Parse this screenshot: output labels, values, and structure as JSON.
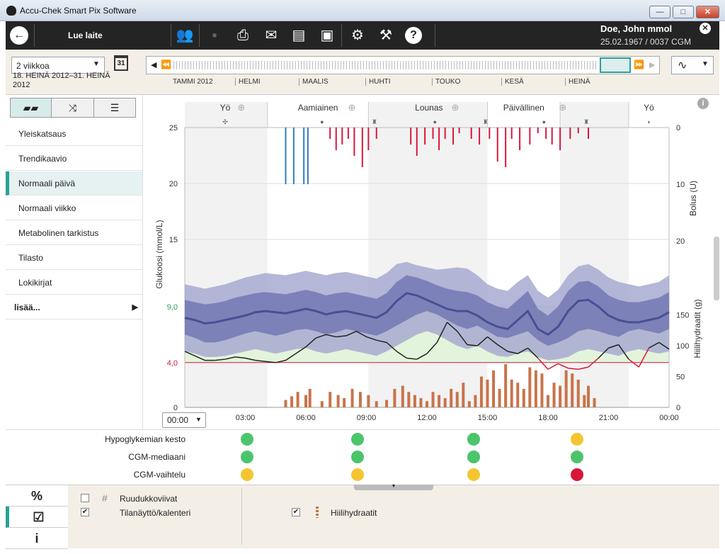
{
  "window": {
    "title": "Accu-Chek Smart Pix Software",
    "min": "—",
    "max": "□",
    "close": "✕"
  },
  "toolbar": {
    "back_icon": "back-arrow-icon",
    "read_device": "Lue laite",
    "patient_name": "Doe, John mmol",
    "patient_info": "25.02.1967 / 0037 CGM",
    "close_icon": "close-circle-icon"
  },
  "nav": {
    "period_select": "2 viikkoa",
    "calendar_day": "31",
    "date_range": "18. HEINÄ 2012–31. HEINÄ 2012",
    "months": [
      "TAMMI 2012",
      "HELMI",
      "MAALIS",
      "HUHTI",
      "TOUKO",
      "KESÄ",
      "HEINÄ"
    ],
    "view_select": "∿"
  },
  "sidebar": {
    "items": [
      {
        "label": "Yleiskatsaus"
      },
      {
        "label": "Trendikaavio"
      },
      {
        "label": "Normaali päivä"
      },
      {
        "label": "Normaali viikko"
      },
      {
        "label": "Metabolinen tarkistus"
      },
      {
        "label": "Tilasto"
      },
      {
        "label": "Lokikirjat"
      },
      {
        "label": "lisää..."
      }
    ]
  },
  "chart_data": {
    "type": "area",
    "time_periods": [
      "Yö",
      "Aamiainen",
      "Lounas",
      "Päivällinen",
      "Yö"
    ],
    "x_ticks": [
      "03:00",
      "06:00",
      "09:00",
      "12:00",
      "15:00",
      "18:00",
      "21:00",
      "00:00"
    ],
    "x_start_label": "00:00",
    "y_left_label": "Glukoosi (mmol/L)",
    "y_left_ticks": [
      "25",
      "20",
      "15",
      "9,0",
      "4,0",
      "0"
    ],
    "y_left_lim": [
      0,
      25
    ],
    "target_range": [
      4.0,
      9.0
    ],
    "bolus_label": "Bolus (U)",
    "bolus_ticks": [
      "0",
      "10",
      "20"
    ],
    "carb_label": "Hiilihydraatit (g)",
    "carb_ticks": [
      "150",
      "100",
      "50",
      "0"
    ],
    "hours": [
      0,
      0.5,
      1,
      1.5,
      2,
      2.5,
      3,
      3.5,
      4,
      4.5,
      5,
      5.5,
      6,
      6.5,
      7,
      7.5,
      8,
      8.5,
      9,
      9.5,
      10,
      10.5,
      11,
      11.5,
      12,
      12.5,
      13,
      13.5,
      14,
      14.5,
      15,
      15.5,
      16,
      16.5,
      17,
      17.5,
      18,
      18.5,
      19,
      19.5,
      20,
      20.5,
      21,
      21.5,
      22,
      22.5,
      23,
      23.5,
      24
    ],
    "p10": [
      5.0,
      4.8,
      4.5,
      4.5,
      4.6,
      4.8,
      5.0,
      5.2,
      5.0,
      4.8,
      5.0,
      5.2,
      5.3,
      5.0,
      4.8,
      5.0,
      5.2,
      5.0,
      4.8,
      4.6,
      5.0,
      5.5,
      6.0,
      6.5,
      6.8,
      6.5,
      6.0,
      5.5,
      5.2,
      5.5,
      5.0,
      4.6,
      4.5,
      4.8,
      5.0,
      4.5,
      4.2,
      4.3,
      4.5,
      5.0,
      5.2,
      5.0,
      4.8,
      4.6,
      5.0,
      5.2,
      5.0,
      4.8,
      5.0
    ],
    "p25": [
      6.5,
      6.2,
      5.8,
      5.8,
      6.0,
      6.3,
      6.6,
      6.8,
      6.6,
      6.4,
      6.6,
      6.9,
      7.0,
      6.8,
      6.5,
      6.7,
      7.0,
      6.8,
      6.6,
      6.4,
      6.8,
      7.3,
      7.8,
      8.3,
      8.6,
      8.3,
      7.8,
      7.3,
      7.0,
      7.3,
      6.8,
      6.3,
      6.2,
      6.5,
      6.8,
      6.0,
      5.5,
      5.8,
      6.2,
      6.8,
      7.0,
      6.8,
      6.5,
      6.3,
      6.8,
      7.0,
      6.8,
      6.6,
      7.0
    ],
    "median": [
      8.0,
      7.8,
      7.5,
      7.6,
      7.8,
      8.0,
      8.2,
      8.5,
      8.6,
      8.5,
      8.4,
      8.6,
      8.8,
      8.6,
      8.3,
      8.5,
      8.6,
      8.4,
      8.2,
      8.0,
      8.5,
      9.5,
      10.2,
      10.0,
      9.6,
      9.2,
      8.8,
      8.6,
      8.6,
      8.2,
      7.6,
      7.2,
      7.0,
      7.8,
      8.6,
      7.0,
      6.5,
      7.2,
      8.6,
      9.5,
      9.6,
      9.0,
      8.2,
      7.8,
      7.6,
      7.6,
      7.8,
      8.0,
      8.5
    ],
    "p75": [
      9.6,
      9.4,
      9.2,
      9.3,
      9.5,
      9.8,
      10.0,
      10.2,
      10.3,
      10.2,
      10.1,
      10.3,
      10.5,
      10.3,
      10.0,
      10.2,
      10.3,
      10.1,
      9.9,
      9.7,
      10.2,
      11.2,
      11.8,
      11.6,
      11.3,
      10.9,
      10.6,
      10.4,
      10.3,
      10.0,
      9.4,
      9.0,
      8.8,
      9.6,
      10.4,
      8.8,
      8.2,
      9.0,
      10.4,
      11.2,
      11.3,
      10.8,
      10.0,
      9.6,
      9.4,
      9.4,
      9.6,
      9.8,
      10.3
    ],
    "p90": [
      11.0,
      10.8,
      10.6,
      10.8,
      11.0,
      11.3,
      11.6,
      11.8,
      12.0,
      11.9,
      11.8,
      12.0,
      12.2,
      12.0,
      11.8,
      12.0,
      12.1,
      11.9,
      11.7,
      11.5,
      12.0,
      12.8,
      13.0,
      12.7,
      12.5,
      12.3,
      12.4,
      12.5,
      12.4,
      11.8,
      11.0,
      10.6,
      10.4,
      11.2,
      11.8,
      10.4,
      9.8,
      10.5,
      11.8,
      12.6,
      12.8,
      12.3,
      11.6,
      11.2,
      11.0,
      10.8,
      11.0,
      11.2,
      11.8
    ],
    "cgm_trace": [
      5.0,
      4.6,
      4.2,
      4.2,
      4.3,
      4.5,
      4.4,
      4.2,
      4.1,
      4.0,
      4.2,
      4.8,
      5.4,
      6.2,
      6.5,
      6.3,
      6.4,
      6.8,
      6.3,
      6.0,
      5.8,
      5.0,
      4.4,
      4.3,
      4.8,
      5.8,
      7.6,
      6.8,
      5.6,
      5.5,
      6.3,
      5.6,
      5.0,
      4.8,
      5.3,
      4.4,
      3.4,
      3.9,
      3.5,
      3.4,
      3.6,
      4.4,
      5.3,
      5.6,
      4.3,
      3.6,
      5.3,
      5.8,
      5.2
    ],
    "cgm_low_threshold": 4.0,
    "bolus_hours": [
      5.0,
      5.4,
      5.9,
      6.1,
      7.2,
      7.5,
      7.8,
      8.1,
      8.4,
      8.8,
      9.1,
      9.5,
      11.2,
      11.5,
      11.9,
      12.3,
      12.6,
      12.9,
      13.3,
      13.6,
      14.2,
      14.6,
      15.1,
      15.5,
      15.9,
      16.2,
      16.6,
      17.1,
      17.5,
      17.9,
      18.2,
      18.6,
      19.1,
      19.5,
      20.0
    ],
    "bolus_values": [
      10,
      10,
      10,
      10,
      2,
      4,
      3,
      2,
      5,
      7,
      4,
      2,
      3,
      5,
      3,
      2,
      4,
      2,
      3,
      1,
      2,
      3,
      2,
      6,
      7,
      2,
      4,
      3,
      1,
      2,
      3,
      4,
      2,
      1,
      2
    ],
    "bolus_is_blue": [
      true,
      true,
      true,
      true,
      false,
      false,
      false,
      false,
      false,
      false,
      false,
      false,
      false,
      false,
      false,
      false,
      false,
      false,
      false,
      false,
      false,
      false,
      false,
      false,
      false,
      false,
      false,
      false,
      false,
      false,
      false,
      false,
      false,
      false,
      false
    ],
    "carb_hours": [
      5.0,
      5.3,
      5.6,
      6.0,
      6.2,
      6.8,
      7.2,
      7.6,
      7.9,
      8.3,
      8.7,
      9.1,
      9.5,
      10.0,
      10.4,
      10.8,
      11.1,
      11.4,
      11.7,
      12.0,
      12.3,
      12.6,
      12.9,
      13.2,
      13.5,
      13.8,
      14.1,
      14.4,
      14.7,
      15.0,
      15.3,
      15.6,
      15.9,
      16.2,
      16.5,
      16.8,
      17.1,
      17.4,
      17.7,
      18.0,
      18.3,
      18.6,
      18.9,
      19.2,
      19.5,
      19.8,
      20.0,
      20.3
    ],
    "carb_values": [
      12,
      18,
      25,
      20,
      30,
      10,
      25,
      20,
      15,
      30,
      25,
      20,
      10,
      12,
      30,
      35,
      25,
      20,
      15,
      10,
      25,
      20,
      15,
      30,
      25,
      40,
      10,
      20,
      50,
      45,
      60,
      30,
      70,
      45,
      40,
      30,
      65,
      60,
      55,
      20,
      40,
      35,
      60,
      55,
      45,
      20,
      35,
      15
    ]
  },
  "indicators": {
    "rows": [
      {
        "label": "Hypoglykemian kesto",
        "colors": [
          "#4cc46a",
          "#4cc46a",
          "#4cc46a",
          "#f5c531"
        ]
      },
      {
        "label": "CGM-mediaani",
        "colors": [
          "#4cc46a",
          "#4cc46a",
          "#4cc46a",
          "#4cc46a"
        ]
      },
      {
        "label": "CGM-vaihtelu",
        "colors": [
          "#f5c531",
          "#f5c531",
          "#f5c531",
          "#d9163a"
        ]
      }
    ]
  },
  "bottom": {
    "tabs": [
      "%",
      "☑",
      "i"
    ],
    "grid_label": "Ruudukkoviivat",
    "status_label": "Tilanäyttö/kalenteri",
    "carb_label": "Hiilihydraatit"
  },
  "colors": {
    "accent": "#2aa198",
    "median": "#4a4f93",
    "band_outer": "#a7aad0",
    "band_inner": "#7378b4",
    "target": "#e3f4dc",
    "low": "#d9163a",
    "bolus_red": "#d9163a",
    "bolus_blue": "#2c7fc0",
    "carb": "#c8744a"
  }
}
